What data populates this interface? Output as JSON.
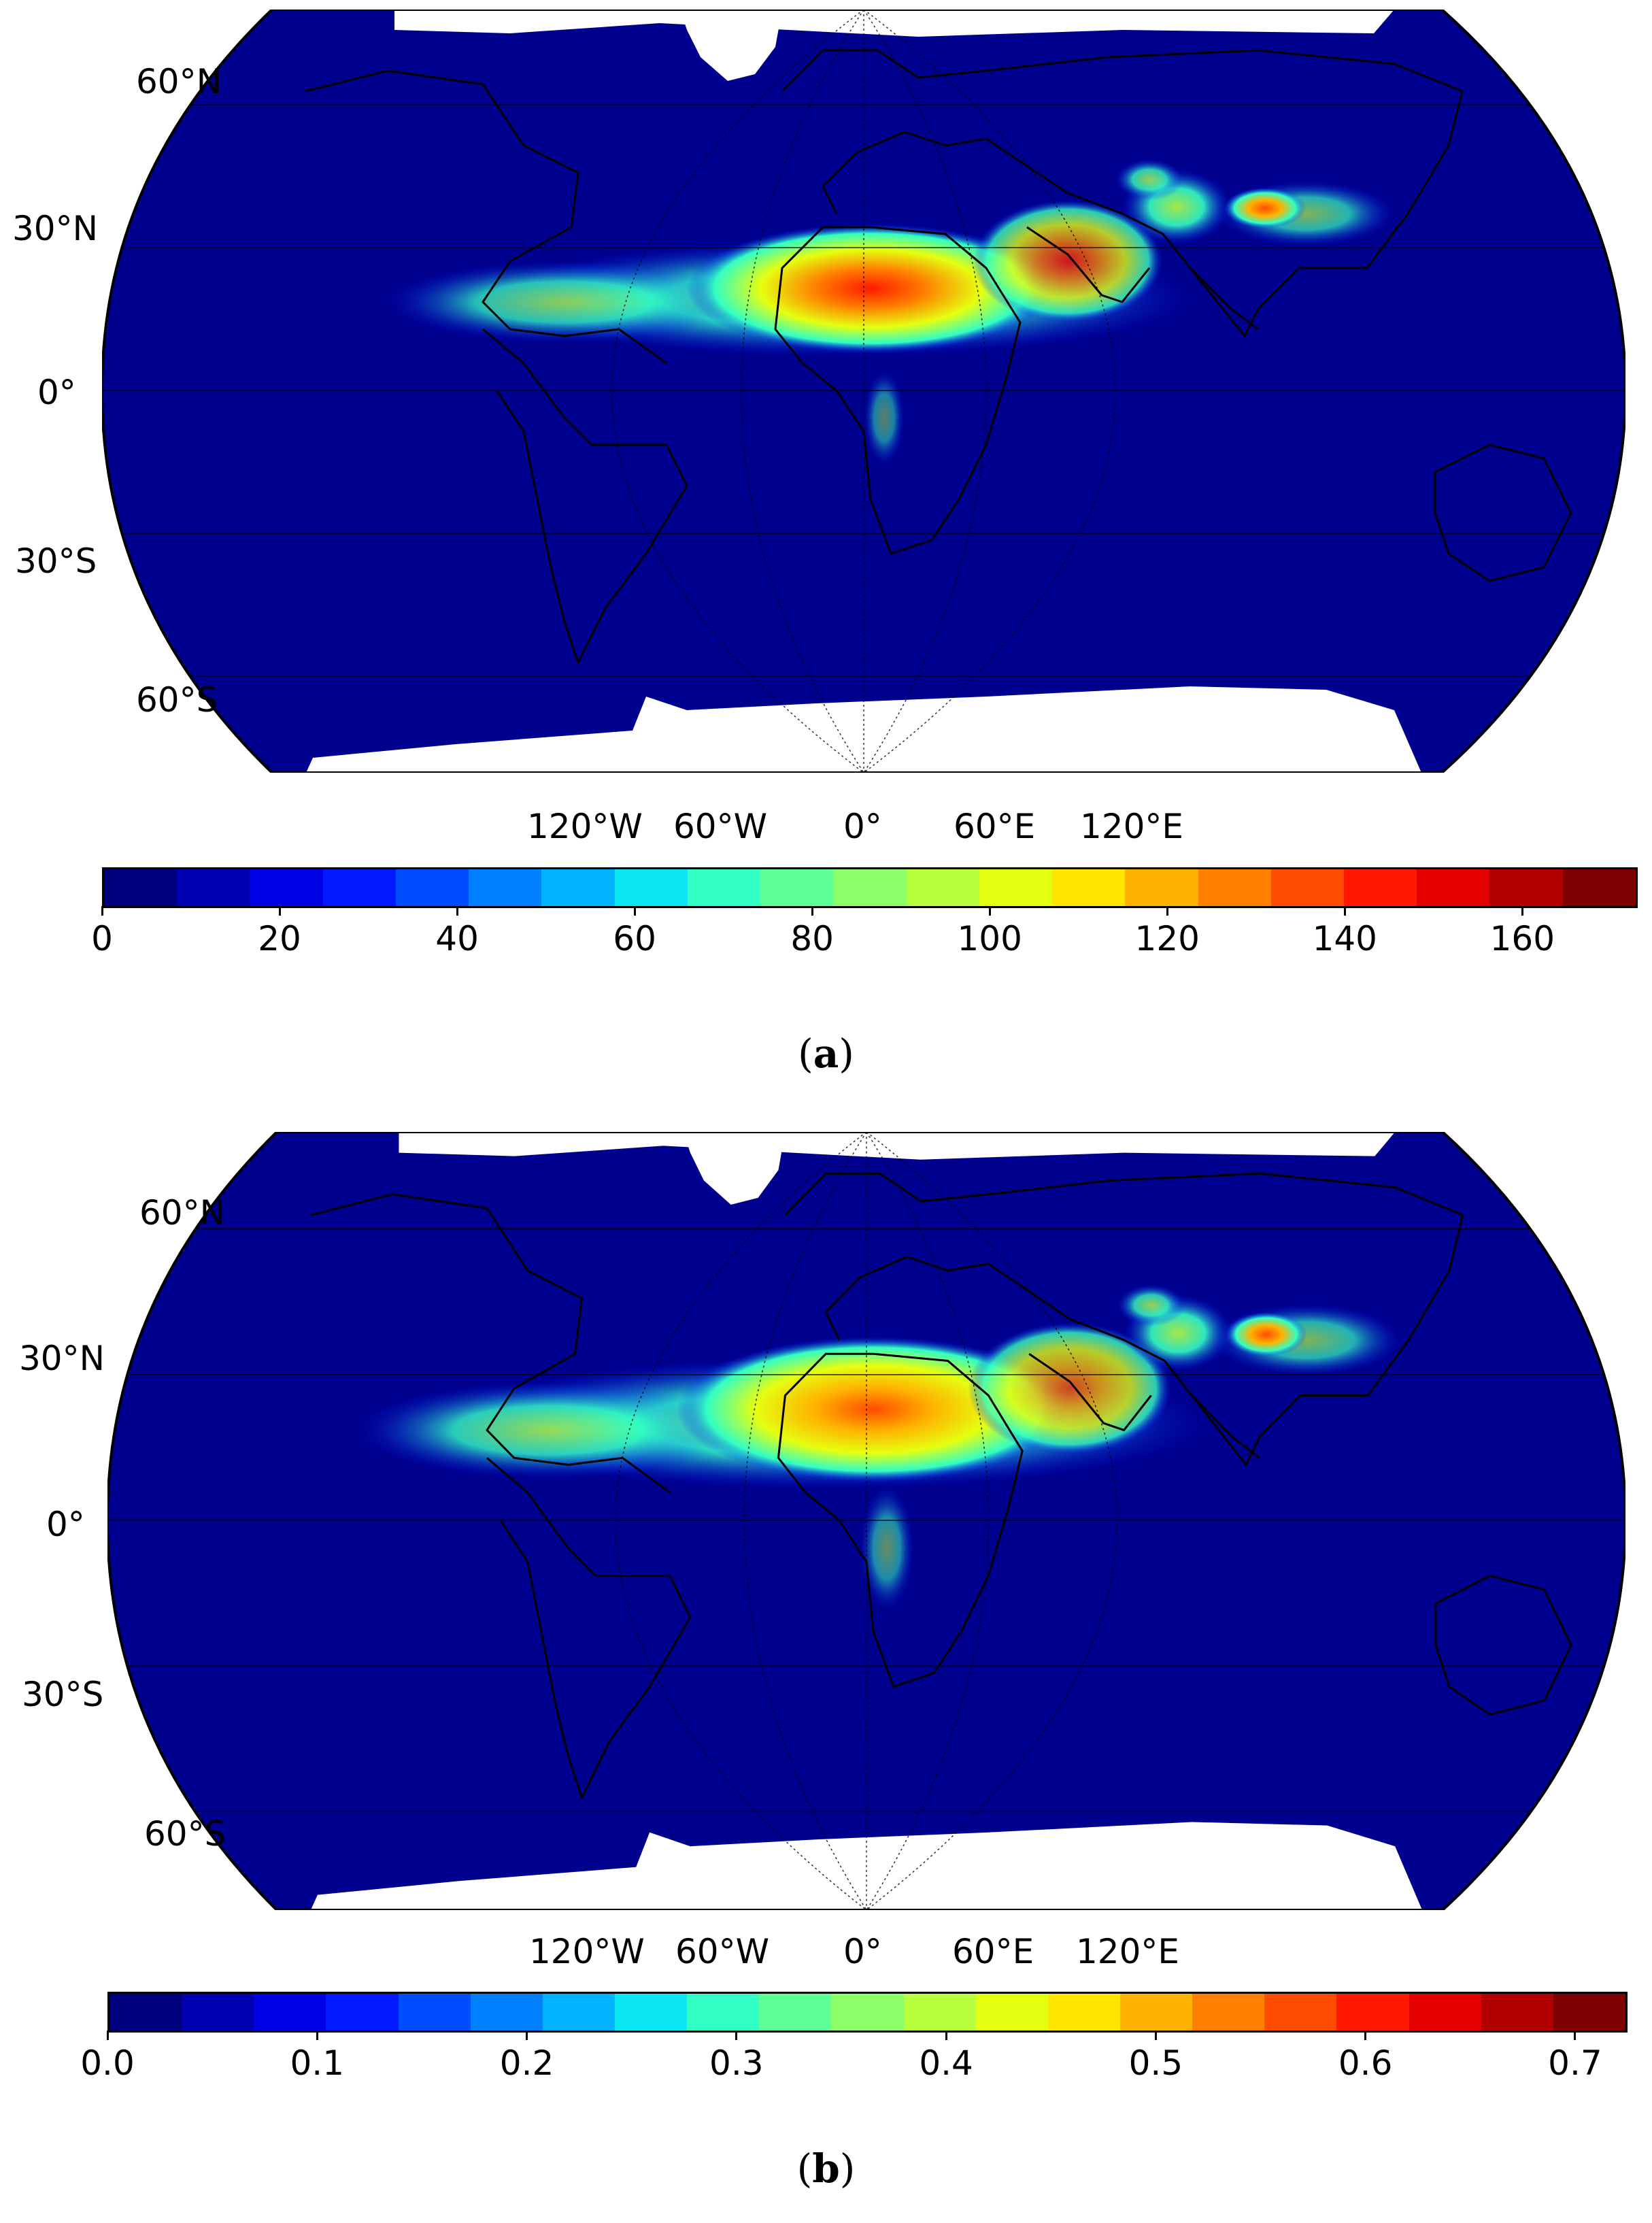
{
  "panels": [
    {
      "id": "a",
      "caption_letter": "a",
      "lat_labels": [
        "60°N",
        "30°N",
        "0°",
        "30°S",
        "60°S"
      ],
      "lon_labels": [
        "120°W",
        "60°W",
        "0°",
        "60°E",
        "120°E"
      ],
      "colorbar": {
        "ticks": [
          "0",
          "20",
          "40",
          "60",
          "80",
          "100",
          "120",
          "140",
          "160"
        ],
        "tick_values": [
          0,
          20,
          40,
          60,
          80,
          100,
          120,
          140,
          160
        ],
        "vmin": 0,
        "vmax": 173
      }
    },
    {
      "id": "b",
      "caption_letter": "b",
      "lat_labels": [
        "60°N",
        "30°N",
        "0°",
        "30°S",
        "60°S"
      ],
      "lon_labels": [
        "120°W",
        "60°W",
        "0°",
        "60°E",
        "120°E"
      ],
      "colorbar": {
        "ticks": [
          "0.0",
          "0.1",
          "0.2",
          "0.3",
          "0.4",
          "0.5",
          "0.6",
          "0.7"
        ],
        "tick_values": [
          0.0,
          0.1,
          0.2,
          0.3,
          0.4,
          0.5,
          0.6,
          0.7
        ],
        "vmin": 0,
        "vmax": 0.725
      }
    }
  ],
  "colormap": [
    "#00007f",
    "#0000b2",
    "#0000e5",
    "#0019ff",
    "#004cff",
    "#007fff",
    "#00b2ff",
    "#0ce5f2",
    "#32ffc3",
    "#5fff97",
    "#8cff6a",
    "#b9ff3d",
    "#e5ff10",
    "#ffe500",
    "#ffb200",
    "#ff7f00",
    "#ff4c00",
    "#ff1900",
    "#e50000",
    "#b20000",
    "#7f0000"
  ]
}
